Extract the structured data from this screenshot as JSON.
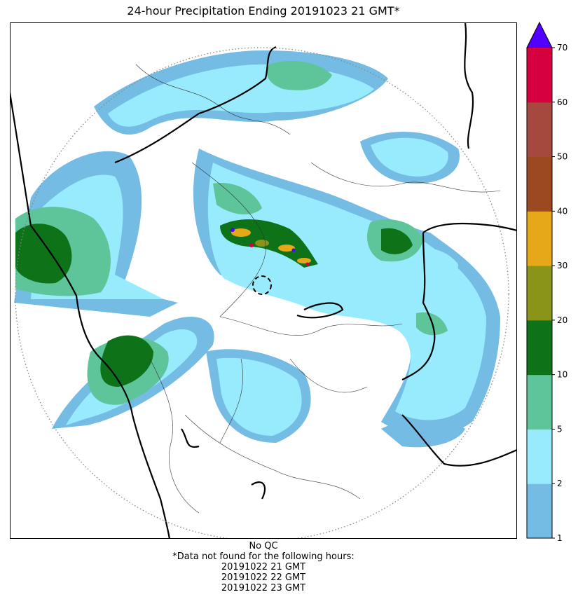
{
  "title": "24-hour Precipitation Ending 20191023 21 GMT*",
  "footer": {
    "qc": "No QC",
    "missing_note": "*Data not found for the following hours:",
    "missing_hours": [
      "20191022 21 GMT",
      "20191022 22 GMT",
      "20191022 23 GMT"
    ]
  },
  "colorbar": {
    "ticks": [
      "1",
      "2",
      "5",
      "10",
      "20",
      "30",
      "40",
      "50",
      "60",
      "70"
    ],
    "colors": [
      "#74bce3",
      "#97ebfd",
      "#5ec49a",
      "#0e7218",
      "#8a9418",
      "#e6a718",
      "#9c4922",
      "#a5483e",
      "#d7003f"
    ],
    "extend_color": "#5200ff"
  },
  "map": {
    "background": "#ffffff",
    "range_ring": "dotted gray circle",
    "radar_site": "dashed black circle"
  }
}
